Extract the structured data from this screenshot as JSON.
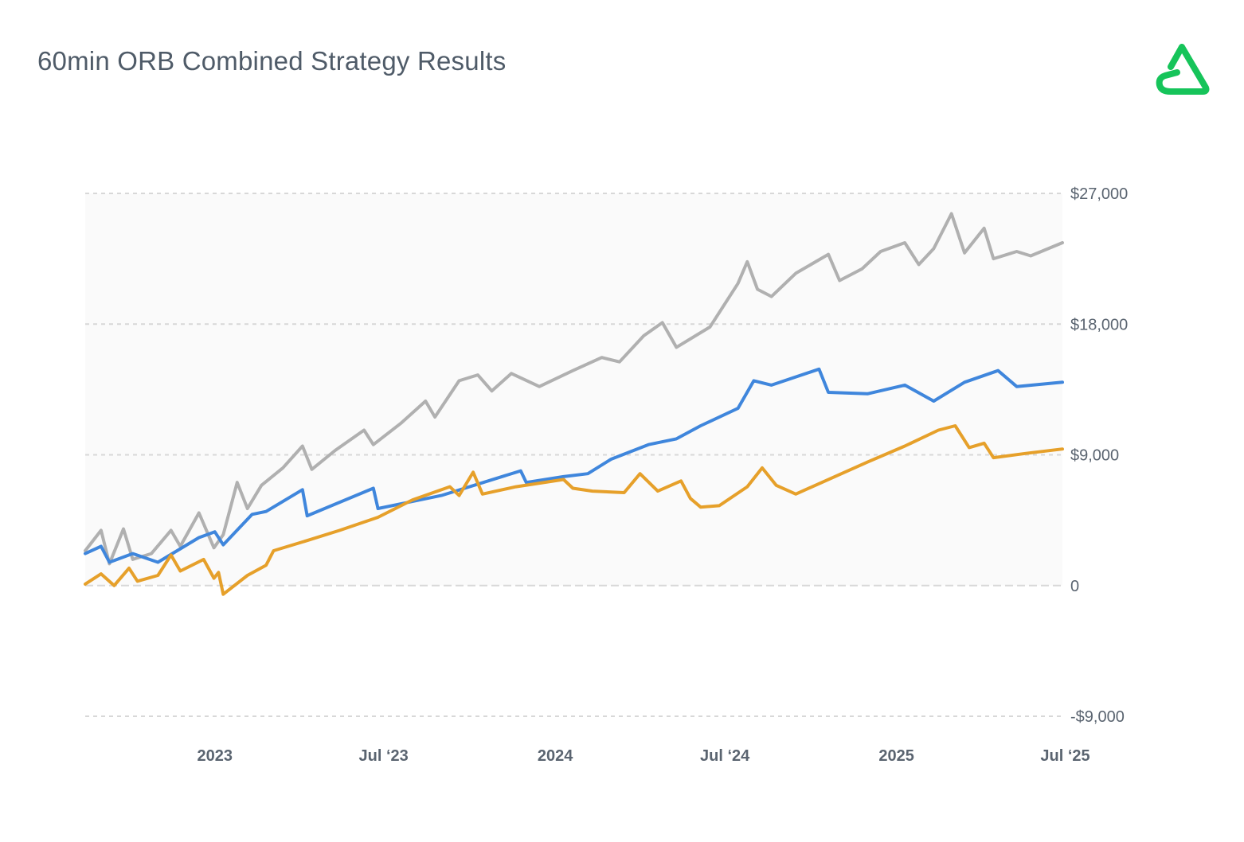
{
  "title": "60min ORB Combined Strategy Results",
  "logo_icon": "green-triangle-loop-logo-icon",
  "colors": {
    "combined": "#b0b0b0",
    "blue": "#3f86dc",
    "orange": "#e6a02a",
    "grid": "#d8d8d8",
    "plot_bg": "#fafafa",
    "text": "#5a6470",
    "brand": "#16c45a"
  },
  "chart_data": {
    "type": "line",
    "title": "60min ORB Combined Strategy Results",
    "xlabel": "",
    "ylabel": "",
    "x_tick_labels": [
      "2023",
      "Jul ‘23",
      "2024",
      "Jul ‘24",
      "2025",
      "Jul ‘25"
    ],
    "x_tick_dates": [
      "2023-01-01",
      "2023-07-01",
      "2024-01-01",
      "2024-07-01",
      "2025-01-01",
      "2025-07-01"
    ],
    "xlim": [
      "2022-08-15",
      "2025-06-28"
    ],
    "y_tick_labels": [
      "$27,000",
      "$18,000",
      "$9,000",
      "0",
      "-$9,000"
    ],
    "y_tick_values": [
      27000,
      18000,
      9000,
      0,
      -9000
    ],
    "ylim": [
      -9000,
      27000
    ],
    "grid": "horizontal-dashed",
    "axis_side": "right",
    "series": [
      {
        "key": "combined",
        "points": [
          [
            "2022-08-15",
            2400
          ],
          [
            "2022-09-01",
            3800
          ],
          [
            "2022-09-10",
            1500
          ],
          [
            "2022-09-25",
            3900
          ],
          [
            "2022-10-05",
            1800
          ],
          [
            "2022-10-25",
            2200
          ],
          [
            "2022-11-15",
            3800
          ],
          [
            "2022-11-25",
            2700
          ],
          [
            "2022-12-15",
            5000
          ],
          [
            "2022-12-31",
            2600
          ],
          [
            "2023-01-10",
            3500
          ],
          [
            "2023-01-25",
            7100
          ],
          [
            "2023-02-05",
            5300
          ],
          [
            "2023-02-20",
            6900
          ],
          [
            "2023-03-15",
            8100
          ],
          [
            "2023-04-05",
            9600
          ],
          [
            "2023-04-15",
            8000
          ],
          [
            "2023-05-10",
            9300
          ],
          [
            "2023-06-10",
            10700
          ],
          [
            "2023-06-20",
            9700
          ],
          [
            "2023-07-20",
            11200
          ],
          [
            "2023-08-15",
            12700
          ],
          [
            "2023-08-25",
            11600
          ],
          [
            "2023-09-20",
            14100
          ],
          [
            "2023-10-10",
            14500
          ],
          [
            "2023-10-25",
            13400
          ],
          [
            "2023-11-15",
            14600
          ],
          [
            "2023-12-15",
            13700
          ],
          [
            "2024-01-20",
            14800
          ],
          [
            "2024-02-20",
            15700
          ],
          [
            "2024-03-10",
            15400
          ],
          [
            "2024-04-05",
            17200
          ],
          [
            "2024-04-25",
            18100
          ],
          [
            "2024-05-10",
            16400
          ],
          [
            "2024-06-15",
            17800
          ],
          [
            "2024-07-15",
            20800
          ],
          [
            "2024-07-25",
            22300
          ],
          [
            "2024-08-05",
            20400
          ],
          [
            "2024-08-20",
            19900
          ],
          [
            "2024-09-15",
            21500
          ],
          [
            "2024-10-20",
            22800
          ],
          [
            "2024-11-01",
            21000
          ],
          [
            "2024-11-25",
            21800
          ],
          [
            "2024-12-15",
            23000
          ],
          [
            "2025-01-10",
            23600
          ],
          [
            "2025-01-25",
            22100
          ],
          [
            "2025-02-10",
            23200
          ],
          [
            "2025-03-01",
            25600
          ],
          [
            "2025-03-15",
            22900
          ],
          [
            "2025-04-05",
            24600
          ],
          [
            "2025-04-15",
            22500
          ],
          [
            "2025-05-10",
            23000
          ],
          [
            "2025-05-25",
            22700
          ],
          [
            "2025-06-28",
            23600
          ]
        ]
      },
      {
        "key": "blue",
        "points": [
          [
            "2022-08-15",
            2200
          ],
          [
            "2022-09-01",
            2700
          ],
          [
            "2022-09-10",
            1600
          ],
          [
            "2022-10-05",
            2200
          ],
          [
            "2022-11-01",
            1600
          ],
          [
            "2022-12-15",
            3300
          ],
          [
            "2023-01-01",
            3700
          ],
          [
            "2023-01-10",
            2800
          ],
          [
            "2023-02-10",
            4900
          ],
          [
            "2023-02-25",
            5100
          ],
          [
            "2023-04-05",
            6600
          ],
          [
            "2023-04-10",
            4800
          ],
          [
            "2023-06-20",
            6700
          ],
          [
            "2023-06-25",
            5300
          ],
          [
            "2023-09-01",
            6200
          ],
          [
            "2023-11-25",
            7900
          ],
          [
            "2023-12-01",
            7100
          ],
          [
            "2024-01-10",
            7500
          ],
          [
            "2024-02-05",
            7700
          ],
          [
            "2024-03-01",
            8700
          ],
          [
            "2024-04-10",
            9700
          ],
          [
            "2024-05-10",
            10100
          ],
          [
            "2024-06-05",
            11000
          ],
          [
            "2024-07-15",
            12200
          ],
          [
            "2024-08-01",
            14100
          ],
          [
            "2024-08-20",
            13800
          ],
          [
            "2024-10-10",
            14900
          ],
          [
            "2024-10-20",
            13300
          ],
          [
            "2024-12-01",
            13200
          ],
          [
            "2025-01-10",
            13800
          ],
          [
            "2025-02-10",
            12700
          ],
          [
            "2025-03-15",
            14000
          ],
          [
            "2025-04-20",
            14800
          ],
          [
            "2025-05-10",
            13700
          ],
          [
            "2025-06-28",
            14000
          ]
        ]
      },
      {
        "key": "orange",
        "points": [
          [
            "2022-08-15",
            100
          ],
          [
            "2022-09-01",
            800
          ],
          [
            "2022-09-15",
            0
          ],
          [
            "2022-10-01",
            1200
          ],
          [
            "2022-10-10",
            300
          ],
          [
            "2022-11-01",
            700
          ],
          [
            "2022-11-15",
            2100
          ],
          [
            "2022-11-25",
            1000
          ],
          [
            "2022-12-20",
            1800
          ],
          [
            "2022-12-31",
            500
          ],
          [
            "2023-01-05",
            900
          ],
          [
            "2023-01-10",
            -600
          ],
          [
            "2023-02-05",
            700
          ],
          [
            "2023-02-25",
            1400
          ],
          [
            "2023-03-05",
            2400
          ],
          [
            "2023-04-10",
            3100
          ],
          [
            "2023-05-15",
            3800
          ],
          [
            "2023-06-25",
            4700
          ],
          [
            "2023-08-01",
            5900
          ],
          [
            "2023-09-10",
            6800
          ],
          [
            "2023-09-20",
            6200
          ],
          [
            "2023-10-05",
            7800
          ],
          [
            "2023-10-15",
            6300
          ],
          [
            "2023-11-20",
            6800
          ],
          [
            "2024-01-10",
            7300
          ],
          [
            "2024-01-20",
            6700
          ],
          [
            "2024-02-10",
            6500
          ],
          [
            "2024-03-15",
            6400
          ],
          [
            "2024-04-01",
            7700
          ],
          [
            "2024-04-20",
            6500
          ],
          [
            "2024-05-15",
            7200
          ],
          [
            "2024-05-25",
            6000
          ],
          [
            "2024-06-05",
            5400
          ],
          [
            "2024-06-25",
            5500
          ],
          [
            "2024-07-25",
            6800
          ],
          [
            "2024-08-10",
            8100
          ],
          [
            "2024-08-25",
            6900
          ],
          [
            "2024-09-15",
            6300
          ],
          [
            "2024-12-01",
            8500
          ],
          [
            "2025-01-10",
            9600
          ],
          [
            "2025-02-15",
            10700
          ],
          [
            "2025-03-05",
            11000
          ],
          [
            "2025-03-20",
            9500
          ],
          [
            "2025-04-05",
            9800
          ],
          [
            "2025-04-15",
            8800
          ],
          [
            "2025-05-20",
            9100
          ],
          [
            "2025-06-28",
            9400
          ]
        ]
      }
    ]
  }
}
